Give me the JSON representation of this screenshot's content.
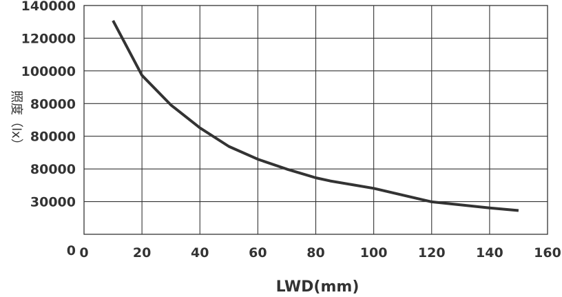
{
  "chart_data": {
    "type": "line",
    "xlabel": "LWD(mm)",
    "ylabel": "照度（lx）",
    "xlim": [
      0,
      160
    ],
    "x_ticks": [
      "0",
      "20",
      "40",
      "60",
      "80",
      "100",
      "120",
      "140",
      "160"
    ],
    "y_ticks": [
      "0",
      "30000",
      "80000",
      "80000",
      "80000",
      "100000",
      "120000",
      "140000"
    ],
    "grid": true,
    "series": [
      {
        "x": [
          10,
          20,
          30,
          40,
          50,
          60,
          70,
          80,
          85,
          100,
          120,
          140,
          150
        ],
        "y_ticks_fraction": [
          0.934,
          0.695,
          0.565,
          0.465,
          0.384,
          0.328,
          0.285,
          0.247,
          0.233,
          0.201,
          0.142,
          0.115,
          0.104
        ]
      }
    ],
    "colors": {
      "line": "#333333",
      "grid": "#333333",
      "text": "#333333"
    }
  }
}
